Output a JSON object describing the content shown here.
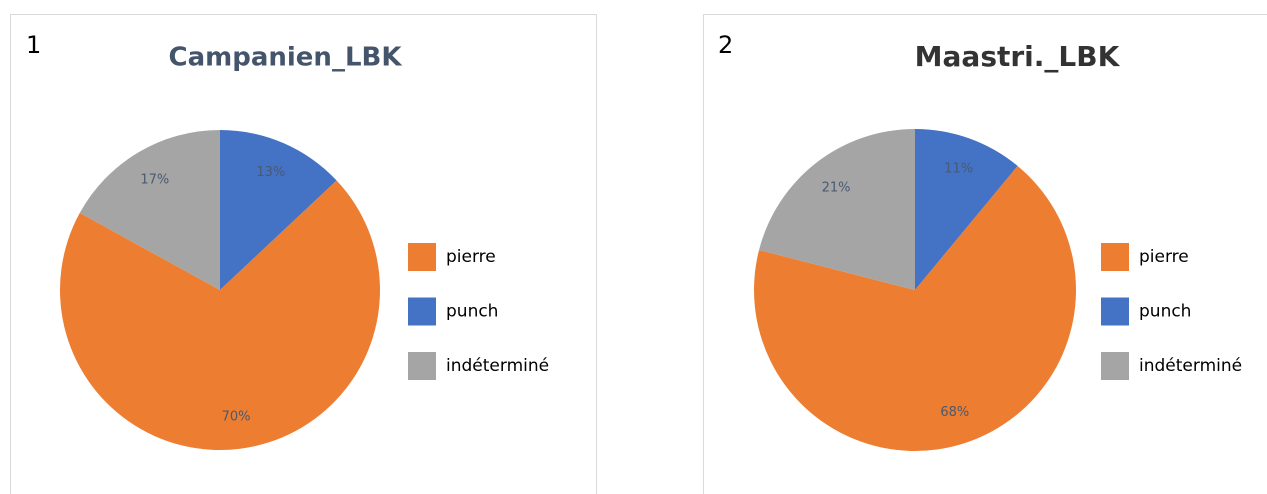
{
  "chart_data": [
    {
      "type": "pie",
      "label": "1",
      "title": "Campanien_LBK",
      "categories": [
        "pierre",
        "punch",
        "indéterminé"
      ],
      "values": [
        70,
        13,
        17
      ],
      "value_labels": [
        "70%",
        "13%",
        "17%"
      ],
      "colors": [
        "#ED7D31",
        "#4472C4",
        "#A5A5A5"
      ],
      "legend": "right"
    },
    {
      "type": "pie",
      "label": "2",
      "title": "Maastri._LBK",
      "categories": [
        "pierre",
        "punch",
        "indéterminé"
      ],
      "values": [
        68,
        11,
        21
      ],
      "value_labels": [
        "68%",
        "11%",
        "21%"
      ],
      "colors": [
        "#ED7D31",
        "#4472C4",
        "#A5A5A5"
      ],
      "legend": "right"
    }
  ]
}
